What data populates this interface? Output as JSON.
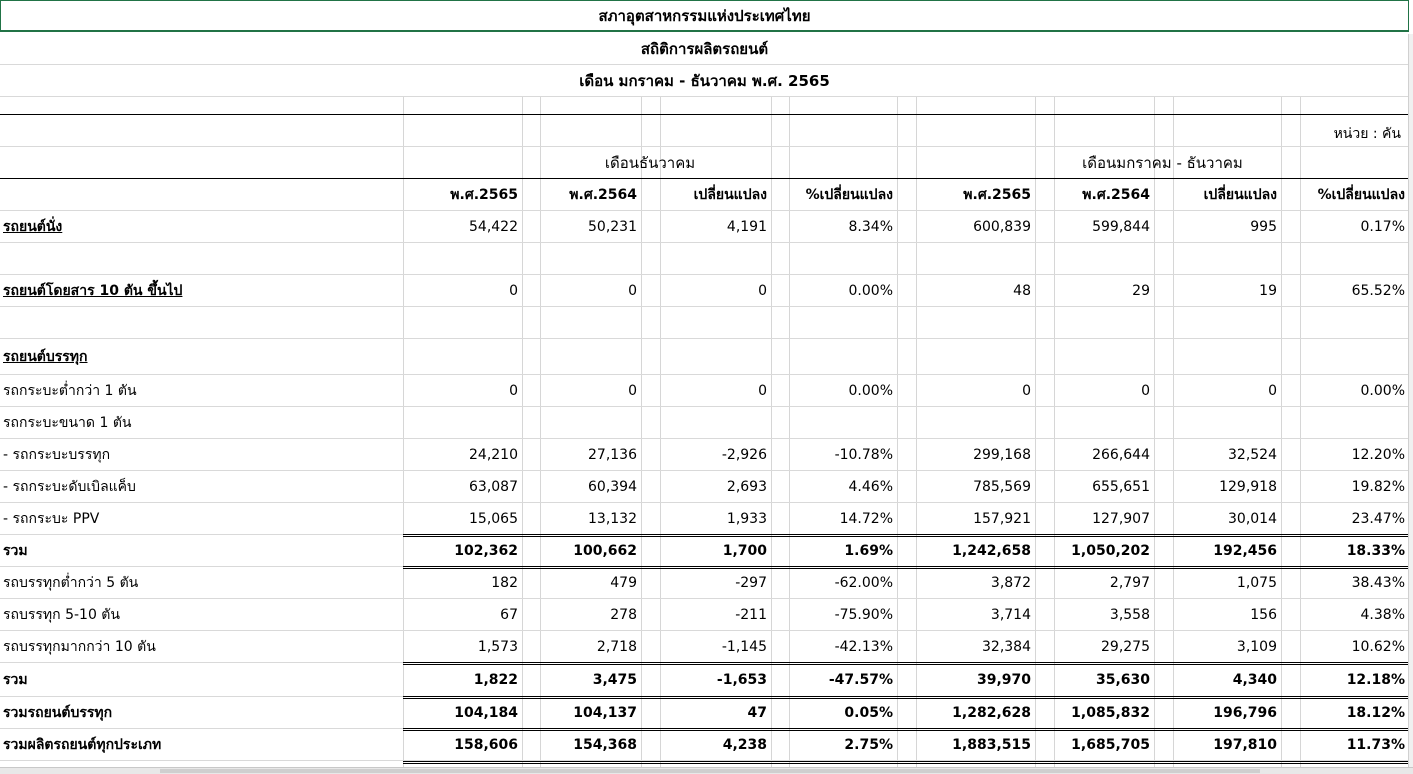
{
  "title1": "สภาอุตสาหกรรมแห่งประเทศไทย",
  "title2": "สถิติการผลิตรถยนต์",
  "title3": "เดือน มกราคม - ธันวาคม พ.ศ. 2565",
  "unit": "หน่วย : คัน",
  "group_month": "เดือนธันวาคม",
  "group_ytd": "เดือนมกราคม - ธันวาคม",
  "headers": [
    "พ.ศ.2565",
    "พ.ศ.2564",
    "เปลี่ยนแปลง",
    "%เปลี่ยนแปลง",
    "พ.ศ.2565",
    "พ.ศ.2564",
    "เปลี่ยนแปลง",
    "%เปลี่ยนแปลง"
  ],
  "rows": [
    {
      "label": "รถยนต์นั่ง",
      "values": [
        "54,422",
        "50,231",
        "4,191",
        "8.34%",
        "600,839",
        "599,844",
        "995",
        "0.17%"
      ]
    },
    {
      "label": "",
      "values": []
    },
    {
      "label": "รถยนต์โดยสาร 10 ตัน ขึ้นไป",
      "values": [
        "0",
        "0",
        "0",
        "0.00%",
        "48",
        "29",
        "19",
        "65.52%"
      ]
    },
    {
      "label": "",
      "values": []
    },
    {
      "label": "รถยนต์บรรทุก",
      "values": []
    },
    {
      "label": "รถกระบะต่ำกว่า 1 ตัน",
      "values": [
        "0",
        "0",
        "0",
        "0.00%",
        "0",
        "0",
        "0",
        "0.00%"
      ]
    },
    {
      "label": "รถกระบะขนาด 1 ตัน",
      "values": []
    },
    {
      "label": " - รถกระบะบรรทุก",
      "values": [
        "24,210",
        "27,136",
        "-2,926",
        "-10.78%",
        "299,168",
        "266,644",
        "32,524",
        "12.20%"
      ]
    },
    {
      "label": " - รถกระบะดับเบิลแค็บ",
      "values": [
        "63,087",
        "60,394",
        "2,693",
        "4.46%",
        "785,569",
        "655,651",
        "129,918",
        "19.82%"
      ]
    },
    {
      "label": " - รถกระบะ PPV",
      "values": [
        "15,065",
        "13,132",
        "1,933",
        "14.72%",
        "157,921",
        "127,907",
        "30,014",
        "23.47%"
      ]
    },
    {
      "label": "รวม",
      "values": [
        "102,362",
        "100,662",
        "1,700",
        "1.69%",
        "1,242,658",
        "1,050,202",
        "192,456",
        "18.33%"
      ]
    },
    {
      "label": "รถบรรทุกต่ำกว่า 5 ตัน",
      "values": [
        "182",
        "479",
        "-297",
        "-62.00%",
        "3,872",
        "2,797",
        "1,075",
        "38.43%"
      ]
    },
    {
      "label": "รถบรรทุก 5-10 ตัน",
      "values": [
        "67",
        "278",
        "-211",
        "-75.90%",
        "3,714",
        "3,558",
        "156",
        "4.38%"
      ]
    },
    {
      "label": "รถบรรทุกมากกว่า 10 ตัน",
      "values": [
        "1,573",
        "2,718",
        "-1,145",
        "-42.13%",
        "32,384",
        "29,275",
        "3,109",
        "10.62%"
      ]
    },
    {
      "label": "รวม",
      "values": [
        "1,822",
        "3,475",
        "-1,653",
        "-47.57%",
        "39,970",
        "35,630",
        "4,340",
        "12.18%"
      ]
    },
    {
      "label": "รวมรถยนต์บรรทุก",
      "values": [
        "104,184",
        "104,137",
        "47",
        "0.05%",
        "1,282,628",
        "1,085,832",
        "196,796",
        "18.12%"
      ]
    },
    {
      "label": "รวมผลิตรถยนต์ทุกประเภท",
      "values": [
        "158,606",
        "154,368",
        "4,238",
        "2.75%",
        "1,883,515",
        "1,685,705",
        "197,810",
        "11.73%"
      ]
    }
  ]
}
